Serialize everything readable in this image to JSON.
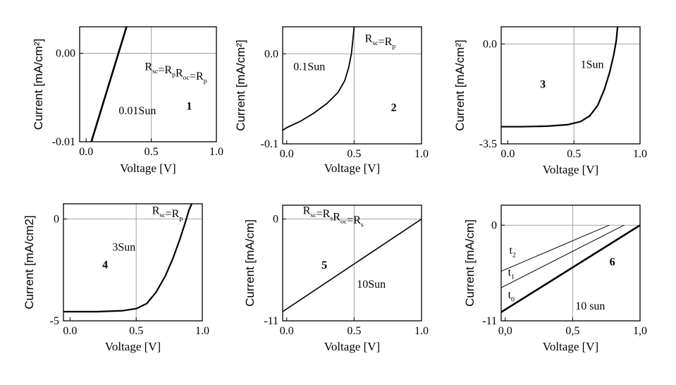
{
  "chart_data": [
    {
      "id": "1",
      "type": "line",
      "panel_number": "1",
      "xlabel": "Voltage [V]",
      "ylabel": "Current [mA/cm²]",
      "xlim": [
        -0.05,
        1.0
      ],
      "ylim": [
        -0.01,
        0.003
      ],
      "x_ticks": [
        {
          "v": 0.0,
          "label": "0.0"
        },
        {
          "v": 0.5,
          "label": "0.5"
        },
        {
          "v": 1.0,
          "label": "1.0"
        }
      ],
      "y_ticks": [
        {
          "v": 0.0,
          "label": "0.00"
        },
        {
          "v": -0.01,
          "label": "-0.01"
        }
      ],
      "grid_x": [
        0.5
      ],
      "grid_y": [
        0.0
      ],
      "annotations": [
        {
          "text": "R_sc=R_p R_oc=R_p",
          "parts": [
            [
              "R",
              ""
            ],
            [
              "sc",
              "sub"
            ],
            [
              "=R",
              ""
            ],
            [
              "p",
              "sub"
            ],
            [
              "R",
              ""
            ],
            [
              "oc",
              "sub"
            ],
            [
              "=R",
              ""
            ],
            [
              "p",
              "sub"
            ]
          ],
          "x": 0.45,
          "y": -0.0019
        },
        {
          "text": "0.01Sun",
          "x": 0.25,
          "y": -0.0069
        }
      ],
      "series": [
        {
          "stroke_width": 2.6,
          "points": [
            [
              0.04,
              -0.01
            ],
            [
              0.31,
              0.003
            ]
          ]
        }
      ]
    },
    {
      "id": "2",
      "type": "line",
      "panel_number": "2",
      "xlabel": "Voltage [V]",
      "ylabel": "Current [mA/cm²]",
      "xlim": [
        -0.03,
        1.0
      ],
      "ylim": [
        -0.1,
        0.03
      ],
      "x_ticks": [
        {
          "v": 0.0,
          "label": "0.0"
        },
        {
          "v": 0.5,
          "label": "0.5"
        },
        {
          "v": 1.0,
          "label": "1.0"
        }
      ],
      "y_ticks": [
        {
          "v": 0.0,
          "label": "0.0"
        },
        {
          "v": -0.1,
          "label": "-0.1"
        }
      ],
      "grid_x": [
        0.5
      ],
      "grid_y": [
        0.0
      ],
      "annotations": [
        {
          "text": "R_sc=R_p",
          "parts": [
            [
              "R",
              ""
            ],
            [
              "sc",
              "sub"
            ],
            [
              "=R",
              ""
            ],
            [
              "p",
              "sub"
            ]
          ],
          "x": 0.58,
          "y": 0.013
        },
        {
          "text": "0.1Sun",
          "x": 0.05,
          "y": -0.018
        }
      ],
      "series": [
        {
          "stroke_width": 1.8,
          "points": [
            [
              -0.03,
              -0.085
            ],
            [
              0.0,
              -0.082
            ],
            [
              0.1,
              -0.075
            ],
            [
              0.2,
              -0.066
            ],
            [
              0.3,
              -0.055
            ],
            [
              0.38,
              -0.043
            ],
            [
              0.43,
              -0.03
            ],
            [
              0.46,
              -0.015
            ],
            [
              0.48,
              0.0
            ],
            [
              0.49,
              0.015
            ],
            [
              0.5,
              0.03
            ]
          ]
        }
      ]
    },
    {
      "id": "3",
      "type": "line",
      "panel_number": "3",
      "xlabel": "Voltage [V]",
      "ylabel": "Current [mA/cm²]",
      "xlim": [
        -0.05,
        1.0
      ],
      "ylim": [
        -3.5,
        0.6
      ],
      "x_ticks": [
        {
          "v": 0.0,
          "label": "0.0"
        },
        {
          "v": 0.5,
          "label": "0.5"
        },
        {
          "v": 1.0,
          "label": "1.0"
        }
      ],
      "y_ticks": [
        {
          "v": 0.0,
          "label": "0.0"
        },
        {
          "v": -3.5,
          "label": "-3.5"
        }
      ],
      "grid_x": [
        0.5
      ],
      "grid_y": [
        0.0
      ],
      "annotations": [
        {
          "text": "1Sun",
          "x": 0.55,
          "y": -0.85
        }
      ],
      "series": [
        {
          "stroke_width": 2.2,
          "points": [
            [
              -0.05,
              -2.9
            ],
            [
              0.1,
              -2.9
            ],
            [
              0.3,
              -2.88
            ],
            [
              0.45,
              -2.83
            ],
            [
              0.55,
              -2.72
            ],
            [
              0.62,
              -2.52
            ],
            [
              0.68,
              -2.15
            ],
            [
              0.73,
              -1.6
            ],
            [
              0.77,
              -1.0
            ],
            [
              0.8,
              -0.4
            ],
            [
              0.82,
              0.1
            ],
            [
              0.83,
              0.6
            ]
          ]
        }
      ]
    },
    {
      "id": "4",
      "type": "line",
      "panel_number": "4",
      "xlabel": "Voltage [V]",
      "ylabel": "Current [mA/cm2]",
      "xlim": [
        -0.05,
        1.0
      ],
      "ylim": [
        -5,
        0.75
      ],
      "x_ticks": [
        {
          "v": 0.0,
          "label": "0.0"
        },
        {
          "v": 0.5,
          "label": "0.5"
        },
        {
          "v": 1.0,
          "label": "1.0"
        }
      ],
      "y_ticks": [
        {
          "v": 0.0,
          "label": "0"
        },
        {
          "v": -5,
          "label": "-5"
        }
      ],
      "grid_x": [
        0.5
      ],
      "grid_y": [
        0.0
      ],
      "annotations": [
        {
          "text": "R_sc=R_p",
          "parts": [
            [
              "R",
              ""
            ],
            [
              "sc",
              "sub"
            ],
            [
              "=R",
              ""
            ],
            [
              "p",
              "sub"
            ]
          ],
          "x": 0.62,
          "y": 0.25
        },
        {
          "text": "3Sun",
          "x": 0.32,
          "y": -1.55
        }
      ],
      "series": [
        {
          "stroke_width": 2.2,
          "points": [
            [
              -0.05,
              -4.55
            ],
            [
              0.2,
              -4.55
            ],
            [
              0.4,
              -4.5
            ],
            [
              0.5,
              -4.4
            ],
            [
              0.58,
              -4.15
            ],
            [
              0.65,
              -3.6
            ],
            [
              0.72,
              -2.8
            ],
            [
              0.78,
              -1.9
            ],
            [
              0.83,
              -1.0
            ],
            [
              0.87,
              -0.2
            ],
            [
              0.9,
              0.45
            ],
            [
              0.92,
              0.75
            ]
          ]
        }
      ]
    },
    {
      "id": "5",
      "type": "line",
      "panel_number": "5",
      "xlabel": "Voltage [V]",
      "ylabel": "Current [mA/cm]",
      "xlim": [
        -0.03,
        1.0
      ],
      "ylim": [
        -11,
        1.5
      ],
      "x_ticks": [
        {
          "v": 0.0,
          "label": "0.0"
        },
        {
          "v": 0.5,
          "label": "0.5"
        },
        {
          "v": 1.0,
          "label": "1.0"
        }
      ],
      "y_ticks": [
        {
          "v": 0.0,
          "label": "0"
        },
        {
          "v": -11,
          "label": "-11"
        }
      ],
      "grid_x": [
        0.5
      ],
      "grid_y": [
        0.0
      ],
      "annotations": [
        {
          "text": "R_sc=R_s R_oc=R_s",
          "parts": [
            [
              "R",
              ""
            ],
            [
              "sc",
              "sub"
            ],
            [
              "=R",
              ""
            ],
            [
              "s",
              "sub"
            ],
            [
              "R",
              ""
            ],
            [
              "oc",
              "sub"
            ],
            [
              "=R",
              ""
            ],
            [
              "s",
              "sub"
            ]
          ],
          "x": 0.12,
          "y": 0.55
        },
        {
          "text": "10Sun",
          "x": 0.52,
          "y": -7.4
        }
      ],
      "series": [
        {
          "stroke_width": 1.6,
          "points": [
            [
              -0.03,
              -10.0
            ],
            [
              1.0,
              0.0
            ]
          ]
        }
      ]
    },
    {
      "id": "6",
      "type": "line",
      "panel_number": "6",
      "xlabel": "Voltage [V]",
      "ylabel": "Current [mA/cm]",
      "xlim": [
        -0.03,
        1.0
      ],
      "ylim": [
        -11,
        2.3
      ],
      "x_ticks": [
        {
          "v": 0.0,
          "label": "0,0"
        },
        {
          "v": 0.5,
          "label": "0,5"
        },
        {
          "v": 1.0,
          "label": "1,0"
        }
      ],
      "y_ticks": [
        {
          "v": 0.0,
          "label": "0"
        },
        {
          "v": -11,
          "label": "-11"
        }
      ],
      "grid_x": [
        0.5
      ],
      "grid_y": [
        0.0
      ],
      "annotations": [
        {
          "text": "t_2",
          "parts": [
            [
              "t",
              ""
            ],
            [
              "2",
              "sub"
            ]
          ],
          "x": 0.03,
          "y": -3.3
        },
        {
          "text": "t_1",
          "parts": [
            [
              "t",
              ""
            ],
            [
              "1",
              "sub"
            ]
          ],
          "x": 0.02,
          "y": -5.8
        },
        {
          "text": "t_0",
          "parts": [
            [
              "t",
              ""
            ],
            [
              "0",
              "sub"
            ]
          ],
          "x": 0.02,
          "y": -8.4
        },
        {
          "text": "10 sun",
          "x": 0.52,
          "y": -9.7
        }
      ],
      "series": [
        {
          "name": "t2",
          "stroke_width": 1.0,
          "points": [
            [
              -0.03,
              -5.3
            ],
            [
              0.77,
              0.0
            ]
          ]
        },
        {
          "name": "t1",
          "stroke_width": 1.0,
          "points": [
            [
              -0.03,
              -7.2
            ],
            [
              0.88,
              0.0
            ]
          ]
        },
        {
          "name": "t0",
          "stroke_width": 2.6,
          "points": [
            [
              -0.03,
              -10.0
            ],
            [
              1.0,
              0.0
            ]
          ]
        }
      ]
    }
  ]
}
